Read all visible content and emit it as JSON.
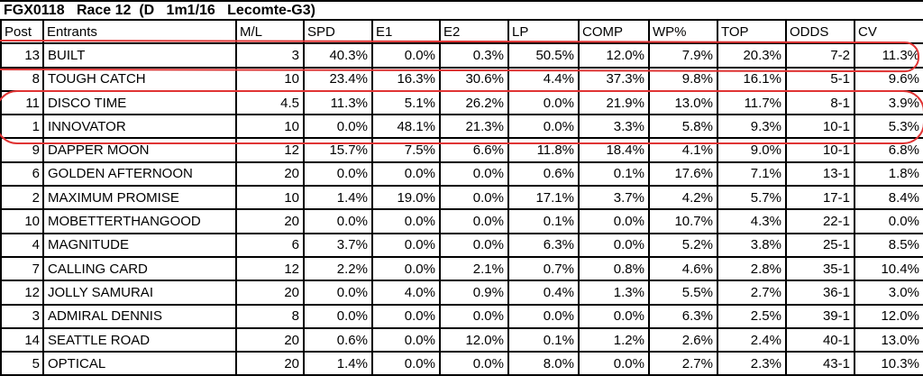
{
  "title": "FGX0118   Race 12  (D   1m1/16   Lecomte-G3)",
  "table": {
    "columns": [
      "Post",
      "Entrants",
      "M/L",
      "SPD",
      "E1",
      "E2",
      "LP",
      "COMP",
      "WP%",
      "TOP",
      "ODDS",
      "CV"
    ],
    "column_keys": [
      "post",
      "entrant",
      "ml",
      "spd",
      "e1",
      "e2",
      "lp",
      "comp",
      "wp-pct",
      "top",
      "odds",
      "cv"
    ],
    "rows": [
      [
        "13",
        "BUILT",
        "3",
        "40.3%",
        "0.0%",
        "0.3%",
        "50.5%",
        "12.0%",
        "7.9%",
        "20.3%",
        "7-2",
        "11.3%"
      ],
      [
        "8",
        "TOUGH CATCH",
        "10",
        "23.4%",
        "16.3%",
        "30.6%",
        "4.4%",
        "37.3%",
        "9.8%",
        "16.1%",
        "5-1",
        "9.6%"
      ],
      [
        "11",
        "DISCO TIME",
        "4.5",
        "11.3%",
        "5.1%",
        "26.2%",
        "0.0%",
        "21.9%",
        "13.0%",
        "11.7%",
        "8-1",
        "3.9%"
      ],
      [
        "1",
        "INNOVATOR",
        "10",
        "0.0%",
        "48.1%",
        "21.3%",
        "0.0%",
        "3.3%",
        "5.8%",
        "9.3%",
        "10-1",
        "5.3%"
      ],
      [
        "9",
        "DAPPER MOON",
        "12",
        "15.7%",
        "7.5%",
        "6.6%",
        "11.8%",
        "18.4%",
        "4.1%",
        "9.0%",
        "10-1",
        "6.8%"
      ],
      [
        "6",
        "GOLDEN AFTERNOON",
        "20",
        "0.0%",
        "0.0%",
        "0.0%",
        "0.6%",
        "0.1%",
        "17.6%",
        "7.1%",
        "13-1",
        "1.8%"
      ],
      [
        "2",
        "MAXIMUM PROMISE",
        "10",
        "1.4%",
        "19.0%",
        "0.0%",
        "17.1%",
        "3.7%",
        "4.2%",
        "5.7%",
        "17-1",
        "8.4%"
      ],
      [
        "10",
        "MOBETTERTHANGOOD",
        "20",
        "0.0%",
        "0.0%",
        "0.0%",
        "0.1%",
        "0.0%",
        "10.7%",
        "4.3%",
        "22-1",
        "0.0%"
      ],
      [
        "4",
        "MAGNITUDE",
        "6",
        "3.7%",
        "0.0%",
        "0.0%",
        "6.3%",
        "0.0%",
        "5.2%",
        "3.8%",
        "25-1",
        "8.5%"
      ],
      [
        "7",
        "CALLING CARD",
        "12",
        "2.2%",
        "0.0%",
        "2.1%",
        "0.7%",
        "0.8%",
        "4.6%",
        "2.8%",
        "35-1",
        "10.4%"
      ],
      [
        "12",
        "JOLLY SAMURAI",
        "20",
        "0.0%",
        "4.0%",
        "0.9%",
        "0.4%",
        "1.3%",
        "5.5%",
        "2.7%",
        "36-1",
        "3.0%"
      ],
      [
        "3",
        "ADMIRAL DENNIS",
        "8",
        "0.0%",
        "0.0%",
        "0.0%",
        "0.0%",
        "0.0%",
        "6.3%",
        "2.5%",
        "39-1",
        "12.0%"
      ],
      [
        "14",
        "SEATTLE ROAD",
        "20",
        "0.6%",
        "0.0%",
        "12.0%",
        "0.1%",
        "1.2%",
        "2.6%",
        "2.4%",
        "40-1",
        "13.0%"
      ],
      [
        "5",
        "OPTICAL",
        "20",
        "1.4%",
        "0.0%",
        "0.0%",
        "8.0%",
        "0.0%",
        "2.7%",
        "2.3%",
        "43-1",
        "10.3%"
      ]
    ]
  },
  "annotations": {
    "color": "#e03434",
    "items": [
      {
        "name": "red-circle-built-row",
        "circled_rows": [
          "BUILT"
        ]
      },
      {
        "name": "red-circle-disco-innovator-rows",
        "circled_rows": [
          "DISCO TIME",
          "INNOVATOR"
        ]
      }
    ]
  },
  "colors": {
    "grid_border": "#000000",
    "background": "#ffffff",
    "text": "#000000"
  }
}
